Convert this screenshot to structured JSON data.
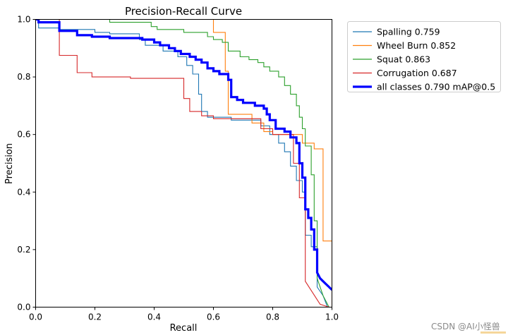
{
  "chart_data": {
    "type": "line",
    "title": "Precision-Recall Curve",
    "xlabel": "Recall",
    "ylabel": "Precision",
    "xlim": [
      0,
      1
    ],
    "ylim": [
      0,
      1
    ],
    "xticks": [
      "0.0",
      "0.2",
      "0.4",
      "0.6",
      "0.8",
      "1.0"
    ],
    "yticks": [
      "0.0",
      "0.2",
      "0.4",
      "0.6",
      "0.8",
      "1.0"
    ],
    "legend_position": "outside-upper-right",
    "series": [
      {
        "name": "Spalling 0.759",
        "color": "#1f77b4",
        "emphasis": false,
        "points": [
          [
            0,
            1
          ],
          [
            0.01,
            1
          ],
          [
            0.01,
            0.97
          ],
          [
            0.08,
            0.97
          ],
          [
            0.08,
            0.965
          ],
          [
            0.2,
            0.965
          ],
          [
            0.2,
            0.955
          ],
          [
            0.25,
            0.955
          ],
          [
            0.25,
            0.95
          ],
          [
            0.35,
            0.95
          ],
          [
            0.35,
            0.93
          ],
          [
            0.37,
            0.93
          ],
          [
            0.37,
            0.91
          ],
          [
            0.43,
            0.91
          ],
          [
            0.43,
            0.89
          ],
          [
            0.48,
            0.89
          ],
          [
            0.48,
            0.87
          ],
          [
            0.51,
            0.87
          ],
          [
            0.51,
            0.84
          ],
          [
            0.53,
            0.84
          ],
          [
            0.53,
            0.81
          ],
          [
            0.55,
            0.81
          ],
          [
            0.55,
            0.74
          ],
          [
            0.56,
            0.74
          ],
          [
            0.56,
            0.68
          ],
          [
            0.58,
            0.68
          ],
          [
            0.58,
            0.66
          ],
          [
            0.66,
            0.66
          ],
          [
            0.66,
            0.65
          ],
          [
            0.76,
            0.65
          ],
          [
            0.76,
            0.63
          ],
          [
            0.79,
            0.63
          ],
          [
            0.79,
            0.6
          ],
          [
            0.82,
            0.6
          ],
          [
            0.82,
            0.57
          ],
          [
            0.84,
            0.57
          ],
          [
            0.84,
            0.54
          ],
          [
            0.86,
            0.54
          ],
          [
            0.86,
            0.49
          ],
          [
            0.88,
            0.49
          ],
          [
            0.88,
            0.44
          ],
          [
            0.9,
            0.44
          ],
          [
            0.9,
            0.4
          ],
          [
            0.91,
            0.4
          ],
          [
            0.91,
            0.25
          ],
          [
            0.93,
            0.25
          ],
          [
            0.93,
            0.21
          ],
          [
            0.95,
            0.21
          ],
          [
            0.95,
            0.07
          ],
          [
            0.97,
            0.04
          ],
          [
            0.985,
            0
          ],
          [
            1,
            0
          ]
        ]
      },
      {
        "name": "Wheel Burn 0.852",
        "color": "#ff7f0e",
        "emphasis": false,
        "points": [
          [
            0.6,
            1
          ],
          [
            0.6,
            0.955
          ],
          [
            0.64,
            0.955
          ],
          [
            0.64,
            0.82
          ],
          [
            0.65,
            0.82
          ],
          [
            0.65,
            0.67
          ],
          [
            0.73,
            0.67
          ],
          [
            0.73,
            0.64
          ],
          [
            0.77,
            0.64
          ],
          [
            0.77,
            0.61
          ],
          [
            0.8,
            0.61
          ],
          [
            0.8,
            0.6
          ],
          [
            0.9,
            0.6
          ],
          [
            0.9,
            0.57
          ],
          [
            0.94,
            0.57
          ],
          [
            0.94,
            0.55
          ],
          [
            0.97,
            0.55
          ],
          [
            0.97,
            0.23
          ],
          [
            1,
            0.23
          ],
          [
            1,
            0
          ]
        ]
      },
      {
        "name": "Squat 0.863",
        "color": "#2ca02c",
        "emphasis": false,
        "points": [
          [
            0,
            1
          ],
          [
            0.25,
            1
          ],
          [
            0.25,
            0.99
          ],
          [
            0.39,
            0.99
          ],
          [
            0.39,
            0.975
          ],
          [
            0.41,
            0.975
          ],
          [
            0.41,
            0.965
          ],
          [
            0.5,
            0.965
          ],
          [
            0.5,
            0.955
          ],
          [
            0.58,
            0.955
          ],
          [
            0.58,
            0.94
          ],
          [
            0.6,
            0.94
          ],
          [
            0.6,
            0.93
          ],
          [
            0.63,
            0.93
          ],
          [
            0.63,
            0.92
          ],
          [
            0.65,
            0.92
          ],
          [
            0.65,
            0.89
          ],
          [
            0.69,
            0.89
          ],
          [
            0.69,
            0.87
          ],
          [
            0.72,
            0.87
          ],
          [
            0.72,
            0.86
          ],
          [
            0.75,
            0.86
          ],
          [
            0.75,
            0.85
          ],
          [
            0.77,
            0.85
          ],
          [
            0.77,
            0.835
          ],
          [
            0.79,
            0.835
          ],
          [
            0.79,
            0.82
          ],
          [
            0.82,
            0.82
          ],
          [
            0.82,
            0.8
          ],
          [
            0.84,
            0.8
          ],
          [
            0.84,
            0.77
          ],
          [
            0.86,
            0.77
          ],
          [
            0.86,
            0.74
          ],
          [
            0.88,
            0.74
          ],
          [
            0.88,
            0.7
          ],
          [
            0.89,
            0.7
          ],
          [
            0.89,
            0.66
          ],
          [
            0.9,
            0.66
          ],
          [
            0.9,
            0.62
          ],
          [
            0.91,
            0.62
          ],
          [
            0.91,
            0.56
          ],
          [
            0.93,
            0.56
          ],
          [
            0.93,
            0.46
          ],
          [
            0.94,
            0.46
          ],
          [
            0.94,
            0.3
          ],
          [
            0.95,
            0.3
          ],
          [
            0.95,
            0.1
          ],
          [
            0.97,
            0.04
          ],
          [
            0.99,
            0
          ],
          [
            1,
            0
          ]
        ]
      },
      {
        "name": "Corrugation 0.687",
        "color": "#d62728",
        "emphasis": false,
        "points": [
          [
            0,
            1
          ],
          [
            0.08,
            1
          ],
          [
            0.08,
            0.875
          ],
          [
            0.14,
            0.875
          ],
          [
            0.14,
            0.815
          ],
          [
            0.19,
            0.815
          ],
          [
            0.19,
            0.8
          ],
          [
            0.32,
            0.8
          ],
          [
            0.32,
            0.795
          ],
          [
            0.5,
            0.795
          ],
          [
            0.5,
            0.725
          ],
          [
            0.52,
            0.725
          ],
          [
            0.52,
            0.68
          ],
          [
            0.56,
            0.68
          ],
          [
            0.56,
            0.665
          ],
          [
            0.6,
            0.665
          ],
          [
            0.6,
            0.655
          ],
          [
            0.76,
            0.655
          ],
          [
            0.76,
            0.62
          ],
          [
            0.8,
            0.62
          ],
          [
            0.8,
            0.6
          ],
          [
            0.87,
            0.6
          ],
          [
            0.87,
            0.5
          ],
          [
            0.89,
            0.5
          ],
          [
            0.89,
            0.38
          ],
          [
            0.91,
            0.38
          ],
          [
            0.91,
            0.09
          ],
          [
            0.96,
            0.01
          ],
          [
            0.99,
            0
          ],
          [
            1,
            0
          ]
        ]
      },
      {
        "name": "all classes 0.790 mAP@0.5",
        "color": "#0000ff",
        "emphasis": true,
        "points": [
          [
            0,
            1
          ],
          [
            0.01,
            1
          ],
          [
            0.01,
            0.99
          ],
          [
            0.08,
            0.99
          ],
          [
            0.08,
            0.96
          ],
          [
            0.14,
            0.96
          ],
          [
            0.14,
            0.945
          ],
          [
            0.19,
            0.945
          ],
          [
            0.19,
            0.94
          ],
          [
            0.25,
            0.94
          ],
          [
            0.25,
            0.935
          ],
          [
            0.36,
            0.935
          ],
          [
            0.36,
            0.93
          ],
          [
            0.4,
            0.93
          ],
          [
            0.4,
            0.92
          ],
          [
            0.42,
            0.92
          ],
          [
            0.42,
            0.91
          ],
          [
            0.45,
            0.91
          ],
          [
            0.45,
            0.9
          ],
          [
            0.47,
            0.9
          ],
          [
            0.47,
            0.89
          ],
          [
            0.49,
            0.89
          ],
          [
            0.49,
            0.88
          ],
          [
            0.52,
            0.88
          ],
          [
            0.52,
            0.87
          ],
          [
            0.54,
            0.87
          ],
          [
            0.54,
            0.86
          ],
          [
            0.56,
            0.86
          ],
          [
            0.56,
            0.85
          ],
          [
            0.58,
            0.85
          ],
          [
            0.58,
            0.83
          ],
          [
            0.6,
            0.83
          ],
          [
            0.6,
            0.82
          ],
          [
            0.62,
            0.82
          ],
          [
            0.62,
            0.81
          ],
          [
            0.65,
            0.81
          ],
          [
            0.65,
            0.79
          ],
          [
            0.66,
            0.79
          ],
          [
            0.66,
            0.73
          ],
          [
            0.68,
            0.73
          ],
          [
            0.68,
            0.72
          ],
          [
            0.7,
            0.72
          ],
          [
            0.7,
            0.71
          ],
          [
            0.74,
            0.71
          ],
          [
            0.74,
            0.7
          ],
          [
            0.77,
            0.7
          ],
          [
            0.77,
            0.69
          ],
          [
            0.78,
            0.69
          ],
          [
            0.78,
            0.67
          ],
          [
            0.79,
            0.67
          ],
          [
            0.79,
            0.65
          ],
          [
            0.81,
            0.65
          ],
          [
            0.81,
            0.62
          ],
          [
            0.84,
            0.62
          ],
          [
            0.84,
            0.61
          ],
          [
            0.86,
            0.61
          ],
          [
            0.86,
            0.59
          ],
          [
            0.88,
            0.59
          ],
          [
            0.88,
            0.57
          ],
          [
            0.89,
            0.57
          ],
          [
            0.89,
            0.5
          ],
          [
            0.9,
            0.5
          ],
          [
            0.9,
            0.45
          ],
          [
            0.91,
            0.45
          ],
          [
            0.91,
            0.34
          ],
          [
            0.92,
            0.34
          ],
          [
            0.92,
            0.31
          ],
          [
            0.93,
            0.31
          ],
          [
            0.93,
            0.27
          ],
          [
            0.94,
            0.27
          ],
          [
            0.94,
            0.2
          ],
          [
            0.95,
            0.2
          ],
          [
            0.95,
            0.12
          ],
          [
            0.96,
            0.1
          ],
          [
            0.97,
            0.09
          ],
          [
            0.98,
            0.08
          ],
          [
            0.99,
            0.07
          ],
          [
            1,
            0.06
          ]
        ]
      }
    ]
  },
  "watermark": "CSDN @AI小怪兽"
}
